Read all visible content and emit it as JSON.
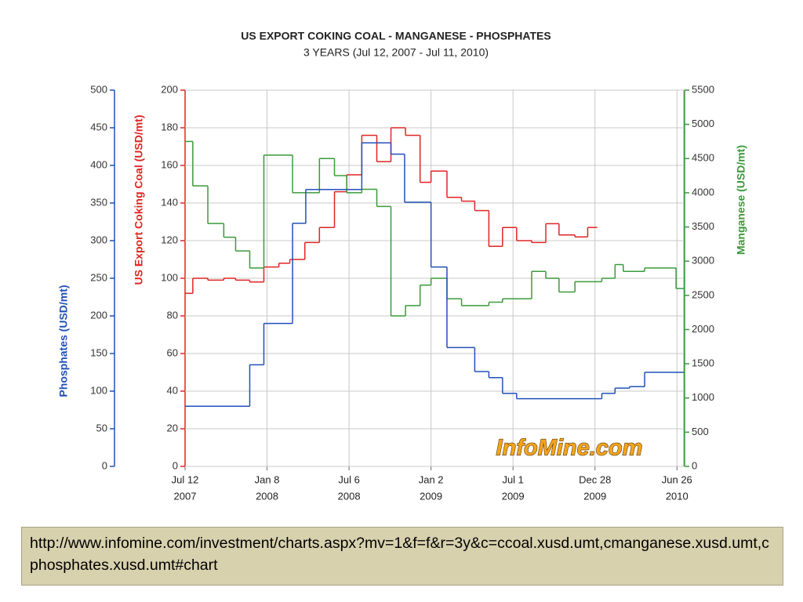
{
  "chart_data": {
    "type": "step",
    "title": "US EXPORT COKING COAL - MANGANESE - PHOSPHATES",
    "subtitle": "3 YEARS (Jul 12, 2007 - Jul 11, 2010)",
    "watermark": "InfoMine.com",
    "xlim": [
      "2007-07-12",
      "2010-07-11"
    ],
    "xticks": [
      {
        "value": "2007-07-12",
        "label": [
          "Jul 12",
          "2007"
        ]
      },
      {
        "value": "2008-01-08",
        "label": [
          "Jan 8",
          "2008"
        ]
      },
      {
        "value": "2008-07-06",
        "label": [
          "Jul 6",
          "2008"
        ]
      },
      {
        "value": "2009-01-02",
        "label": [
          "Jan 2",
          "2009"
        ]
      },
      {
        "value": "2009-07-01",
        "label": [
          "Jul 1",
          "2009"
        ]
      },
      {
        "value": "2009-12-28",
        "label": [
          "Dec 28",
          "2009"
        ]
      },
      {
        "value": "2010-06-26",
        "label": [
          "Jun 26",
          "2010"
        ]
      }
    ],
    "ylabel": "US Export Coking Coal (USD/mt)",
    "ylim": [
      0,
      200
    ],
    "yticks": [
      0,
      20,
      40,
      60,
      80,
      100,
      120,
      140,
      160,
      180,
      200
    ],
    "y2label": "Manganese (USD/mt)",
    "y2lim": [
      0,
      5500
    ],
    "y2ticks": [
      0,
      500,
      1000,
      1500,
      2000,
      2500,
      3000,
      3500,
      4000,
      4500,
      5000,
      5500
    ],
    "y3label": "Phosphates (USD/mt)",
    "y3lim": [
      0,
      500
    ],
    "y3ticks": [
      0,
      50,
      100,
      150,
      200,
      250,
      300,
      350,
      400,
      450,
      500
    ],
    "grid": true,
    "series": [
      {
        "name": "US Export Coking Coal",
        "color": "#e02424",
        "x": [
          "2007-07-12",
          "2007-07-29",
          "2007-08-31",
          "2007-10-05",
          "2007-10-31",
          "2007-12-01",
          "2008-01-01",
          "2008-02-03",
          "2008-02-27",
          "2008-03-31",
          "2008-05-02",
          "2008-06-04",
          "2008-07-01",
          "2008-08-03",
          "2008-09-05",
          "2008-10-06",
          "2008-11-07",
          "2008-12-09",
          "2009-01-02",
          "2009-02-06",
          "2009-03-10",
          "2009-04-08",
          "2009-05-09",
          "2009-06-08",
          "2009-07-09",
          "2009-08-11",
          "2009-09-11",
          "2009-10-10",
          "2009-11-14",
          "2009-12-12",
          "2010-01-02"
        ],
        "values": [
          92,
          100,
          99,
          100,
          99,
          98,
          106,
          108,
          110,
          119,
          127,
          146,
          155,
          176,
          162,
          180,
          176,
          151,
          157,
          143,
          141,
          136,
          117,
          127,
          120,
          119,
          129,
          123,
          122,
          127,
          127
        ]
      },
      {
        "name": "Manganese",
        "color": "#3a9a3a",
        "axis": "y2",
        "x": [
          "2007-07-12",
          "2007-07-29",
          "2007-08-31",
          "2007-10-05",
          "2007-10-31",
          "2007-12-01",
          "2008-01-01",
          "2008-03-04",
          "2008-05-02",
          "2008-06-04",
          "2008-07-01",
          "2008-08-03",
          "2008-09-05",
          "2008-10-06",
          "2008-11-07",
          "2008-12-09",
          "2009-01-02",
          "2009-02-06",
          "2009-03-10",
          "2009-05-09",
          "2009-06-08",
          "2009-08-11",
          "2009-09-11",
          "2009-10-10",
          "2009-11-14",
          "2010-01-12",
          "2010-02-10",
          "2010-02-28",
          "2010-04-16",
          "2010-06-24",
          "2010-07-11"
        ],
        "values": [
          4750,
          4100,
          3550,
          3350,
          3150,
          2900,
          4550,
          4000,
          4500,
          4250,
          4000,
          4050,
          3800,
          2200,
          2350,
          2650,
          2750,
          2450,
          2350,
          2400,
          2450,
          2850,
          2750,
          2550,
          2700,
          2750,
          2950,
          2850,
          2900,
          2600,
          2600
        ]
      },
      {
        "name": "Phosphates",
        "color": "#2150b8",
        "axis": "y3",
        "x": [
          "2007-07-12",
          "2007-12-01",
          "2008-01-01",
          "2008-03-04",
          "2008-04-02",
          "2008-08-03",
          "2008-10-06",
          "2008-11-05",
          "2009-01-02",
          "2009-02-06",
          "2009-04-08",
          "2009-05-09",
          "2009-06-08",
          "2009-07-09",
          "2010-01-12",
          "2010-02-10",
          "2010-03-14",
          "2010-04-16",
          "2010-07-11"
        ],
        "values": [
          80,
          135,
          190,
          323,
          368,
          430,
          415,
          351,
          265,
          158,
          126,
          118,
          97,
          90,
          97,
          104,
          106,
          125,
          125
        ]
      }
    ]
  },
  "caption": "http://www.infomine.com/investment/charts.aspx?mv=1&f=f&r=3y&c=ccoal.xusd.umt,cmanganese.xusd.umt,cphosphates.xusd.umt#chart"
}
